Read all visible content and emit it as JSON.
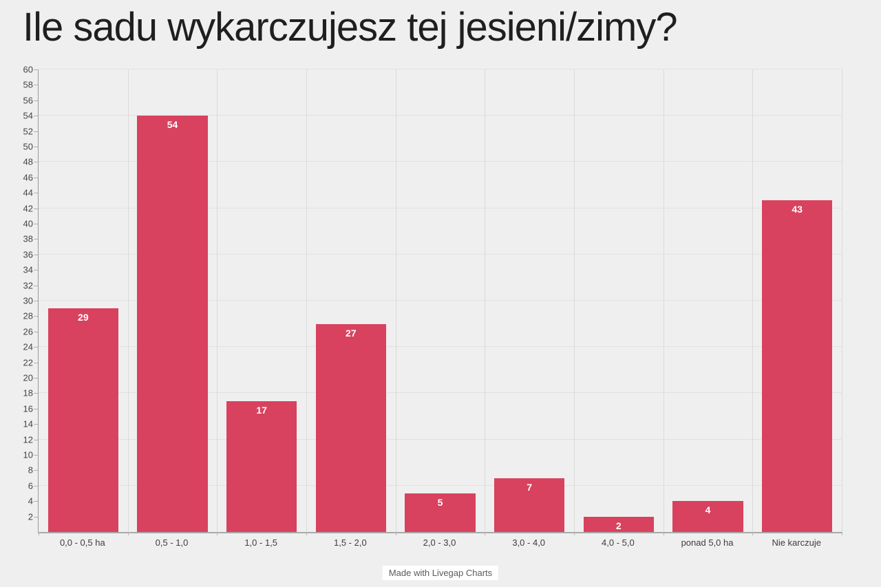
{
  "page": {
    "background": "#efefef",
    "footer": {
      "label": "Made with Livegap Charts"
    }
  },
  "chart_data": {
    "type": "bar",
    "title": "Ile sadu wykarczujesz tej jesieni/zimy?",
    "categories": [
      "0,0 - 0,5 ha",
      "0,5 - 1,0",
      "1,0 - 1,5",
      "1,5 - 2,0",
      "2,0 - 3,0",
      "3,0 - 4,0",
      "4,0 - 5,0",
      "ponad 5,0 ha",
      "Nie karczuje"
    ],
    "values": [
      29,
      54,
      17,
      27,
      5,
      7,
      2,
      4,
      43
    ],
    "xlabel": "",
    "ylabel": "",
    "ylim": [
      0,
      60
    ],
    "y_tick_step": 2,
    "y_tick_min": 2,
    "y_gridline_step": 6,
    "grid": true,
    "legend": "none",
    "bar_color": "#d8425f",
    "value_label_color": "#ffffff",
    "axis_label_color": "#444444",
    "background_color": "#efefef"
  }
}
